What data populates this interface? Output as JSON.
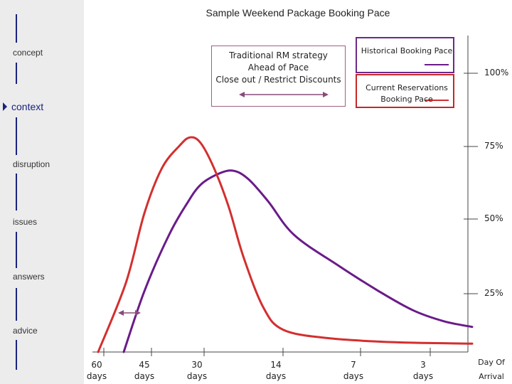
{
  "nav": {
    "items": [
      {
        "label": "concept",
        "active": false
      },
      {
        "label": "context",
        "active": true
      },
      {
        "label": "disruption",
        "active": false
      },
      {
        "label": "issues",
        "active": false
      },
      {
        "label": "answers",
        "active": false
      },
      {
        "label": "advice",
        "active": false
      }
    ]
  },
  "annotation": {
    "lines": [
      "Traditional RM strategy",
      "Ahead of Pace",
      "Close out / Restrict Discounts"
    ]
  },
  "chart_data": {
    "type": "line",
    "title": "Sample Weekend Package Booking Pace",
    "xlabel": "",
    "ylabel": "",
    "x_ticks": [
      {
        "value": 60,
        "line1": "60",
        "line2": "days"
      },
      {
        "value": 45,
        "line1": "45",
        "line2": "days"
      },
      {
        "value": 30,
        "line1": "30",
        "line2": "days"
      },
      {
        "value": 14,
        "line1": "14",
        "line2": "days"
      },
      {
        "value": 7,
        "line1": "7",
        "line2": "days"
      },
      {
        "value": 3,
        "line1": "3",
        "line2": "days"
      }
    ],
    "x_end_label": {
      "line1": "Day Of",
      "line2": "Arrival"
    },
    "y_ticks": [
      "100%",
      "75%",
      "50%",
      "25%"
    ],
    "y_tick_values": [
      100,
      75,
      50,
      25
    ],
    "ylim": [
      0,
      100
    ],
    "legend_position": "top-right",
    "series": [
      {
        "name": "Historical Booking Pace",
        "color": "#6a1b8a",
        "points": [
          [
            57,
            0
          ],
          [
            48,
            22
          ],
          [
            40,
            42
          ],
          [
            35,
            53
          ],
          [
            31,
            60
          ],
          [
            27,
            64
          ],
          [
            24,
            65
          ],
          [
            21,
            62
          ],
          [
            17,
            54
          ],
          [
            13,
            42
          ],
          [
            9,
            31
          ],
          [
            6,
            22
          ],
          [
            4,
            15
          ],
          [
            2,
            11
          ],
          [
            0,
            9
          ]
        ]
      },
      {
        "name": "Current Reservations Booking Pace",
        "color": "#d32f2f",
        "points": [
          [
            64,
            0
          ],
          [
            56,
            25
          ],
          [
            48,
            50
          ],
          [
            42,
            66
          ],
          [
            37,
            74
          ],
          [
            34,
            77
          ],
          [
            31,
            75
          ],
          [
            28,
            66
          ],
          [
            25,
            52
          ],
          [
            22,
            34
          ],
          [
            18,
            16
          ],
          [
            14,
            8
          ],
          [
            10,
            5
          ],
          [
            5,
            3.5
          ],
          [
            0,
            3
          ]
        ]
      }
    ]
  }
}
